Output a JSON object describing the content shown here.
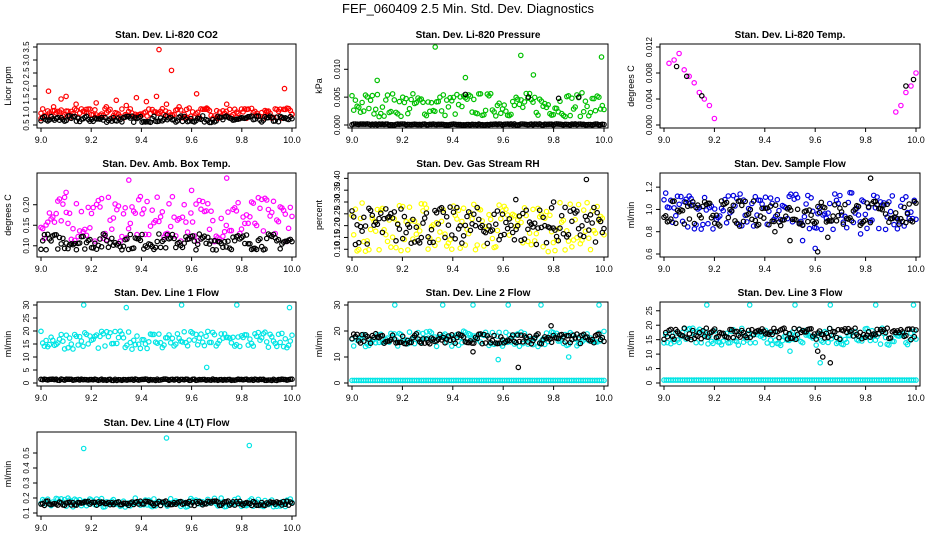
{
  "page": {
    "title": "FEF_060409  2.5 Min. Std. Dev. Diagnostics"
  },
  "chart_data": [
    {
      "type": "scatter",
      "title": "Stan. Dev. Li-820 CO2",
      "xlabel": "",
      "ylabel": "Licor ppm",
      "xlim": [
        9.0,
        10.0
      ],
      "ylim": [
        0.5,
        3.5
      ],
      "xticks": [
        "9.0",
        "9.2",
        "9.4",
        "9.6",
        "9.8",
        "10.0"
      ],
      "yticks": [
        "0.5",
        "1.0",
        "1.5",
        "2.0",
        "2.5",
        "3.0",
        "3.5"
      ],
      "series": [
        {
          "color": "#ff0000",
          "values": "0.6-1.3 band across whole range",
          "points": [
            [
              9.0,
              0.95
            ],
            [
              9.03,
              1.8
            ],
            [
              9.05,
              1.2
            ],
            [
              9.08,
              1.5
            ],
            [
              9.1,
              1.6
            ],
            [
              9.14,
              1.3
            ],
            [
              9.18,
              1.1
            ],
            [
              9.22,
              1.35
            ],
            [
              9.26,
              1.2
            ],
            [
              9.3,
              1.45
            ],
            [
              9.34,
              1.25
            ],
            [
              9.38,
              1.55
            ],
            [
              9.42,
              1.4
            ],
            [
              9.46,
              1.6
            ],
            [
              9.47,
              3.4
            ],
            [
              9.5,
              1.3
            ],
            [
              9.52,
              2.6
            ],
            [
              9.55,
              1.2
            ],
            [
              9.58,
              1.1
            ],
            [
              9.62,
              1.7
            ],
            [
              9.66,
              1.15
            ],
            [
              9.7,
              1.05
            ],
            [
              9.74,
              1.3
            ],
            [
              9.78,
              1.0
            ],
            [
              9.82,
              1.1
            ],
            [
              9.86,
              0.95
            ],
            [
              9.9,
              1.0
            ],
            [
              9.94,
              1.1
            ],
            [
              9.97,
              1.9
            ],
            [
              10.0,
              0.9
            ]
          ],
          "band": [
            0.75,
            1.15
          ]
        },
        {
          "color": "#000000",
          "band": [
            0.6,
            0.85
          ]
        }
      ]
    },
    {
      "type": "scatter",
      "title": "Stan. Dev. Li-820 Pressure",
      "xlabel": "",
      "ylabel": "kPa",
      "xlim": [
        9.0,
        10.0
      ],
      "ylim": [
        0.0,
        0.014
      ],
      "xticks": [
        "9.0",
        "9.2",
        "9.4",
        "9.6",
        "9.8",
        "10.0"
      ],
      "yticks": [
        "0.000",
        "0.005",
        "0.010"
      ],
      "series": [
        {
          "color": "#00c000",
          "points": [
            [
              9.33,
              0.014
            ],
            [
              9.67,
              0.0125
            ],
            [
              9.99,
              0.0122
            ],
            [
              9.1,
              0.008
            ],
            [
              9.45,
              0.0085
            ],
            [
              9.72,
              0.009
            ]
          ],
          "band": [
            0.0015,
            0.0058
          ]
        },
        {
          "color": "#000000",
          "band": [
            0.0,
            0.0002
          ],
          "extra": [
            [
              9.45,
              0.0055
            ],
            [
              9.7,
              0.005
            ],
            [
              9.82,
              0.0048
            ],
            [
              9.9,
              0.005
            ]
          ]
        }
      ]
    },
    {
      "type": "scatter",
      "title": "Stan. Dev. Li-820 Temp.",
      "xlabel": "",
      "ylabel": "degrees C",
      "xlim": [
        9.0,
        10.0
      ],
      "ylim": [
        0.0,
        0.012
      ],
      "xticks": [
        "9.0",
        "9.2",
        "9.4",
        "9.6",
        "9.8",
        "10.0"
      ],
      "yticks": [
        "0.000",
        "0.004",
        "0.008",
        "0.012"
      ],
      "series": [
        {
          "color": "#ff00ff",
          "points": [
            [
              9.02,
              0.0095
            ],
            [
              9.04,
              0.01
            ],
            [
              9.06,
              0.011
            ],
            [
              9.08,
              0.0085
            ],
            [
              9.1,
              0.0075
            ],
            [
              9.12,
              0.0065
            ],
            [
              9.14,
              0.005
            ],
            [
              9.16,
              0.004
            ],
            [
              9.18,
              0.003
            ],
            [
              9.2,
              0.001
            ],
            [
              9.92,
              0.002
            ],
            [
              9.94,
              0.003
            ],
            [
              9.96,
              0.005
            ],
            [
              9.98,
              0.006
            ],
            [
              10.0,
              0.008
            ]
          ]
        },
        {
          "color": "#000000",
          "points": [
            [
              9.05,
              0.009
            ],
            [
              9.09,
              0.0075
            ],
            [
              9.15,
              0.0045
            ],
            [
              9.96,
              0.006
            ],
            [
              9.99,
              0.007
            ]
          ]
        }
      ]
    },
    {
      "type": "scatter",
      "title": "Stan. Dev. Amb. Box Temp.",
      "xlabel": "",
      "ylabel": "degrees C",
      "xlim": [
        9.0,
        10.0
      ],
      "ylim": [
        0.08,
        0.27
      ],
      "xticks": [
        "9.0",
        "9.2",
        "9.4",
        "9.6",
        "9.8",
        "10.0"
      ],
      "yticks": [
        "0.10",
        "0.15",
        "0.20"
      ],
      "series": [
        {
          "color": "#ff00ff",
          "points": [
            [
              9.35,
              0.26
            ],
            [
              9.74,
              0.265
            ],
            [
              9.1,
              0.23
            ],
            [
              9.6,
              0.235
            ]
          ],
          "band": [
            0.11,
            0.22
          ]
        },
        {
          "color": "#000000",
          "band": [
            0.09,
            0.13
          ]
        }
      ]
    },
    {
      "type": "scatter",
      "title": "Stan. Dev. Gas Stream RH",
      "xlabel": "",
      "ylabel": "percent",
      "xlim": [
        9.0,
        10.0
      ],
      "ylim": [
        0.08,
        0.41
      ],
      "xticks": [
        "9.0",
        "9.2",
        "9.4",
        "9.6",
        "9.8",
        "10.0"
      ],
      "yticks": [
        "0.10",
        "0.15",
        "0.20",
        "0.25",
        "0.30",
        "0.35",
        "0.40"
      ],
      "series": [
        {
          "color": "#ffff00",
          "band": [
            0.09,
            0.3
          ]
        },
        {
          "color": "#000000",
          "points": [
            [
              9.93,
              0.395
            ],
            [
              9.65,
              0.31
            ],
            [
              9.8,
              0.3
            ]
          ],
          "band": [
            0.12,
            0.28
          ]
        }
      ]
    },
    {
      "type": "scatter",
      "title": "Stan. Dev. Sample Flow",
      "xlabel": "",
      "ylabel": "ml/min",
      "xlim": [
        9.0,
        10.0
      ],
      "ylim": [
        0.6,
        1.3
      ],
      "xticks": [
        "9.0",
        "9.2",
        "9.4",
        "9.6",
        "9.8",
        "10.0"
      ],
      "yticks": [
        "0.6",
        "0.8",
        "1.0",
        "1.2"
      ],
      "series": [
        {
          "color": "#0000e0",
          "band": [
            0.82,
            1.15
          ],
          "points": [
            [
              9.1,
              1.12
            ],
            [
              9.55,
              0.72
            ],
            [
              9.78,
              0.78
            ],
            [
              9.6,
              0.65
            ]
          ]
        },
        {
          "color": "#000000",
          "points": [
            [
              9.82,
              1.28
            ],
            [
              9.61,
              0.62
            ],
            [
              9.5,
              0.72
            ],
            [
              9.65,
              0.75
            ],
            [
              9.3,
              0.85
            ],
            [
              9.44,
              0.8
            ]
          ],
          "band": [
            0.85,
            1.08
          ]
        }
      ]
    },
    {
      "type": "scatter",
      "title": "Stan. Dev. Line 1 Flow",
      "xlabel": "",
      "ylabel": "ml/min",
      "xlim": [
        9.0,
        10.0
      ],
      "ylim": [
        0,
        30
      ],
      "xticks": [
        "9.0",
        "9.2",
        "9.4",
        "9.6",
        "9.8",
        "10.0"
      ],
      "yticks": [
        "0",
        "5",
        "10",
        "15",
        "20",
        "25",
        "30"
      ],
      "series": [
        {
          "color": "#00e5e5",
          "band": [
            13,
            20
          ],
          "points": [
            [
              9.17,
              30
            ],
            [
              9.34,
              29
            ],
            [
              9.56,
              30
            ],
            [
              9.78,
              30
            ],
            [
              9.99,
              29
            ],
            [
              9.66,
              6
            ]
          ]
        },
        {
          "color": "#000000",
          "band": [
            1,
            1.5
          ]
        }
      ]
    },
    {
      "type": "scatter",
      "title": "Stan. Dev. Line 2 Flow",
      "xlabel": "",
      "ylabel": "ml/min",
      "xlim": [
        9.0,
        10.0
      ],
      "ylim": [
        0,
        30
      ],
      "xticks": [
        "9.0",
        "9.2",
        "9.4",
        "9.6",
        "9.8",
        "10.0"
      ],
      "yticks": [
        "0",
        "10",
        "20",
        "30"
      ],
      "series": [
        {
          "color": "#00e5e5",
          "band": [
            14,
            20
          ],
          "points": [
            [
              9.17,
              30
            ],
            [
              9.36,
              30
            ],
            [
              9.48,
              30
            ],
            [
              9.62,
              30
            ],
            [
              9.75,
              30
            ],
            [
              9.98,
              30
            ],
            [
              9.58,
              9
            ],
            [
              9.86,
              10
            ]
          ],
          "floor": 1
        },
        {
          "color": "#000000",
          "band": [
            15,
            19
          ],
          "points": [
            [
              9.66,
              6
            ],
            [
              9.48,
              12
            ],
            [
              9.79,
              22
            ]
          ]
        }
      ]
    },
    {
      "type": "scatter",
      "title": "Stan. Dev. Line 3 Flow",
      "xlabel": "",
      "ylabel": "ml/min",
      "xlim": [
        9.0,
        10.0
      ],
      "ylim": [
        0,
        27
      ],
      "xticks": [
        "9.0",
        "9.2",
        "9.4",
        "9.6",
        "9.8",
        "10.0"
      ],
      "yticks": [
        "0",
        "5",
        "10",
        "15",
        "20",
        "25"
      ],
      "series": [
        {
          "color": "#00e5e5",
          "band": [
            13,
            19
          ],
          "points": [
            [
              9.17,
              27
            ],
            [
              9.34,
              27
            ],
            [
              9.52,
              27
            ],
            [
              9.66,
              27
            ],
            [
              9.84,
              27
            ],
            [
              9.99,
              27
            ],
            [
              9.62,
              7
            ],
            [
              9.5,
              11
            ]
          ],
          "floor": 1
        },
        {
          "color": "#000000",
          "band": [
            15,
            19
          ],
          "points": [
            [
              9.66,
              7
            ],
            [
              9.63,
              9
            ],
            [
              9.61,
              11
            ]
          ]
        }
      ]
    },
    {
      "type": "scatter",
      "title": "Stan. Dev. Line 4 (LT) Flow",
      "xlabel": "",
      "ylabel": "ml/min",
      "xlim": [
        9.0,
        10.0
      ],
      "ylim": [
        0.1,
        0.62
      ],
      "xticks": [
        "9.0",
        "9.2",
        "9.4",
        "9.6",
        "9.8",
        "10.0"
      ],
      "yticks": [
        "0.1",
        "0.2",
        "0.3",
        "0.4",
        "0.5"
      ],
      "series": [
        {
          "color": "#00e5e5",
          "band": [
            0.14,
            0.2
          ],
          "points": [
            [
              9.17,
              0.53
            ],
            [
              9.5,
              0.6
            ],
            [
              9.83,
              0.55
            ]
          ]
        },
        {
          "color": "#000000",
          "band": [
            0.15,
            0.18
          ]
        }
      ]
    }
  ]
}
